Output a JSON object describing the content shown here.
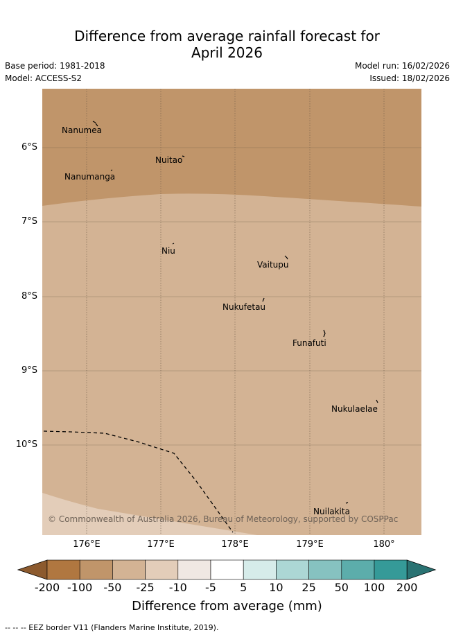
{
  "title_line1": "Difference from average rainfall forecast for",
  "title_line2": "April 2026",
  "meta": {
    "base_period": "Base period: 1981-2018",
    "model": "Model: ACCESS-S2",
    "model_run": "Model run: 16/02/2026",
    "issued": "Issued: 18/02/2026"
  },
  "lat_labels": [
    "6°S",
    "7°S",
    "8°S",
    "9°S",
    "10°S"
  ],
  "lon_labels": [
    "176°E",
    "177°E",
    "178°E",
    "179°E",
    "180°"
  ],
  "places": {
    "nanumea": "Nanumea",
    "nuitao": "Nuitao",
    "nanumanga": "Nanumanga",
    "niu": "Niu",
    "vaitupu": "Vaitupu",
    "nukufetau": "Nukufetau",
    "funafuti": "Funafuti",
    "nukulaelae": "Nukulaelae",
    "nuilakita": "Nuilakita"
  },
  "copyright": "© Commonwealth of Australia 2026, Bureau of Meteorology, supported by COSPPac",
  "colorbar": {
    "title": "Difference from average (mm)",
    "ticks": [
      "-200",
      "-100",
      "-50",
      "-25",
      "-10",
      "-5",
      "5",
      "10",
      "25",
      "50",
      "100",
      "200"
    ],
    "colors": [
      "#8c5a2e",
      "#b07740",
      "#c0956a",
      "#d3b394",
      "#e3cdb9",
      "#f0e8e3",
      "#ffffff",
      "#d6ecea",
      "#acd7d5",
      "#86c2c0",
      "#5cadab",
      "#359a98",
      "#2a7373"
    ]
  },
  "footer": "-- -- -- EEZ border V11 (Flanders Marine Institute, 2019)."
}
